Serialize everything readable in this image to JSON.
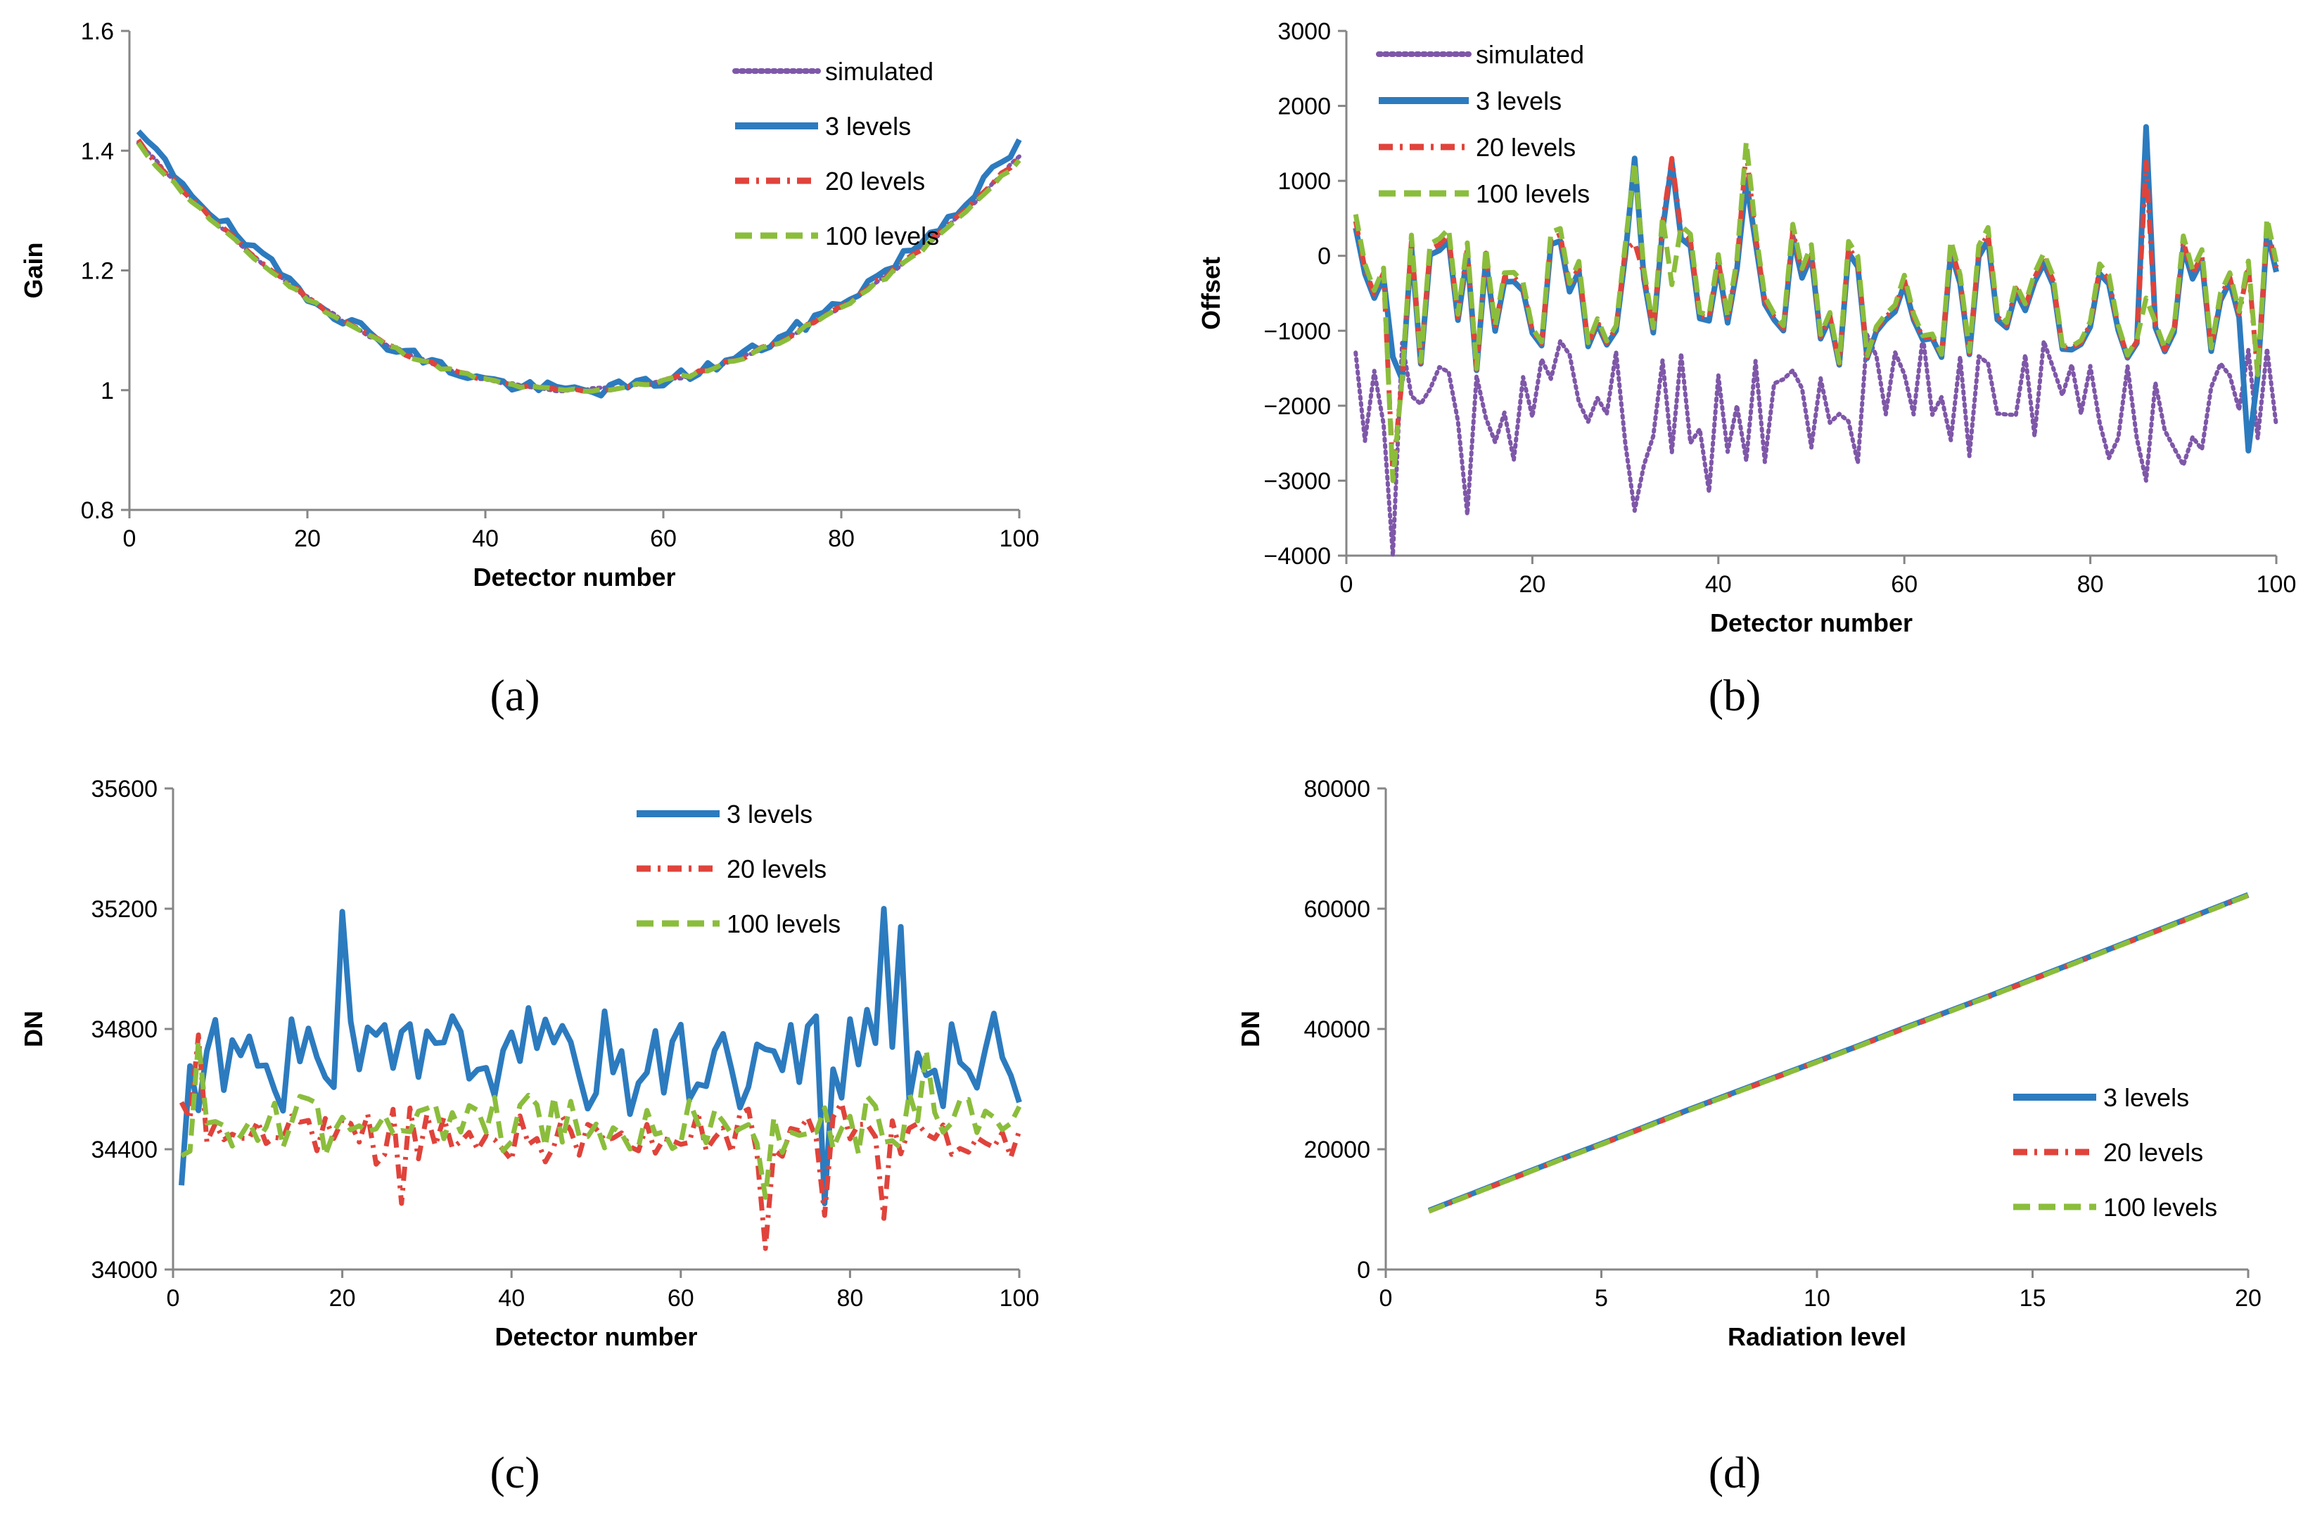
{
  "styles": {
    "simulated": {
      "color": "#7e57a8",
      "dash": "3 6",
      "width": 6,
      "cap": "round"
    },
    "3 levels": {
      "color": "#2c7bbf",
      "dash": "",
      "width": 8,
      "cap": "butt"
    },
    "20 levels": {
      "color": "#e0433b",
      "dash": "20 10 4 10",
      "width": 7,
      "cap": "butt"
    },
    "100 levels": {
      "color": "#8bbd3c",
      "dash": "24 12",
      "width": 7,
      "cap": "butt"
    }
  },
  "chart_data": [
    {
      "id": "a",
      "type": "line",
      "panel_label": "(a)",
      "xlabel": "Detector number",
      "ylabel": "Gain",
      "xlim": [
        0,
        100
      ],
      "ylim": [
        0.8,
        1.6
      ],
      "xticks": [
        0,
        20,
        40,
        60,
        80,
        100
      ],
      "yticks": [
        0.8,
        1,
        1.2,
        1.4,
        1.6
      ],
      "ytick_labels": [
        "0.8",
        "1",
        "1.2",
        "1.4",
        "1.6"
      ],
      "legend_position": "top-right",
      "series": [
        {
          "name": "simulated",
          "generator": "parabola",
          "gen": {
            "min": 1.0,
            "vertex": 50,
            "y1": 1.415,
            "y100": 1.39,
            "noise": 0.003
          }
        },
        {
          "name": "3 levels",
          "generator": "parabola",
          "gen": {
            "min": 1.0,
            "vertex": 50,
            "y1": 1.43,
            "y100": 1.41,
            "noise": 0.012
          }
        },
        {
          "name": "20 levels",
          "generator": "parabola",
          "gen": {
            "min": 1.0,
            "vertex": 50,
            "y1": 1.415,
            "y100": 1.39,
            "noise": 0.004
          }
        },
        {
          "name": "100 levels",
          "generator": "parabola",
          "gen": {
            "min": 1.0,
            "vertex": 50,
            "y1": 1.41,
            "y100": 1.385,
            "noise": 0.004
          }
        }
      ]
    },
    {
      "id": "b",
      "type": "line",
      "panel_label": "(b)",
      "xlabel": "Detector number",
      "ylabel": "Offset",
      "xlim": [
        0,
        100
      ],
      "ylim": [
        -4000,
        3000
      ],
      "xticks": [
        0,
        20,
        40,
        60,
        80,
        100
      ],
      "yticks": [
        -4000,
        -3000,
        -2000,
        -1000,
        0,
        1000,
        2000,
        3000
      ],
      "ytick_labels": [
        "−4000",
        "−3000",
        "−2000",
        "−1000",
        "0",
        "1000",
        "2000",
        "3000"
      ],
      "legend_position": "top-left",
      "series": [
        {
          "name": "simulated",
          "generator": "noisy",
          "gen": {
            "mean": -1900,
            "amp": 1100,
            "seed": 11,
            "spikes": [
              [
                5,
                -4000
              ],
              [
                13,
                -3450
              ],
              [
                31,
                -3400
              ],
              [
                39,
                -3150
              ],
              [
                86,
                -3000
              ]
            ]
          }
        },
        {
          "name": "3 levels",
          "generator": "noisy",
          "gen": {
            "mean": -600,
            "amp": 1200,
            "seed": 23,
            "spikes": [
              [
                31,
                1300
              ],
              [
                35,
                1250
              ],
              [
                43,
                1000
              ],
              [
                86,
                1720
              ],
              [
                97,
                -2600
              ]
            ]
          }
        },
        {
          "name": "20 levels",
          "generator": "noisy",
          "gen": {
            "mean": -550,
            "amp": 1250,
            "seed": 23,
            "spikes": [
              [
                35,
                1300
              ],
              [
                43,
                1400
              ],
              [
                86,
                1250
              ],
              [
                5,
                -2900
              ]
            ]
          }
        },
        {
          "name": "100 levels",
          "generator": "noisy",
          "gen": {
            "mean": -500,
            "amp": 1300,
            "seed": 23,
            "spikes": [
              [
                43,
                1520
              ],
              [
                31,
                1250
              ],
              [
                5,
                -3000
              ]
            ]
          }
        }
      ]
    },
    {
      "id": "c",
      "type": "line",
      "panel_label": "(c)",
      "xlabel": "Detector number",
      "ylabel": "DN",
      "xlim": [
        0,
        100
      ],
      "ylim": [
        34000,
        35600
      ],
      "xticks": [
        0,
        20,
        40,
        60,
        80,
        100
      ],
      "yticks": [
        34000,
        34400,
        34800,
        35200,
        35600
      ],
      "ytick_labels": [
        "34000",
        "34400",
        "34800",
        "35200",
        "35600"
      ],
      "legend_position": "top-center",
      "series": [
        {
          "name": "3 levels",
          "generator": "noisy",
          "gen": {
            "mean": 34700,
            "amp": 200,
            "seed": 31,
            "spikes": [
              [
                1,
                34280
              ],
              [
                20,
                35190
              ],
              [
                77,
                34220
              ],
              [
                84,
                35200
              ],
              [
                86,
                35140
              ]
            ]
          }
        },
        {
          "name": "20 levels",
          "generator": "noisy",
          "gen": {
            "mean": 34450,
            "amp": 110,
            "seed": 47,
            "spikes": [
              [
                3,
                34780
              ],
              [
                27,
                34220
              ],
              [
                70,
                34070
              ],
              [
                77,
                34180
              ],
              [
                84,
                34170
              ]
            ]
          }
        },
        {
          "name": "100 levels",
          "generator": "noisy",
          "gen": {
            "mean": 34480,
            "amp": 120,
            "seed": 53,
            "spikes": [
              [
                89,
                34730
              ],
              [
                3,
                34760
              ],
              [
                70,
                34240
              ]
            ]
          }
        }
      ]
    },
    {
      "id": "d",
      "type": "line",
      "panel_label": "(d)",
      "xlabel": "Radiation level",
      "ylabel": "DN",
      "xlim": [
        0,
        20
      ],
      "ylim": [
        0,
        80000
      ],
      "xticks": [
        0,
        5,
        10,
        15,
        20
      ],
      "yticks": [
        0,
        20000,
        40000,
        60000,
        80000
      ],
      "ytick_labels": [
        "0",
        "20000",
        "40000",
        "60000",
        "80000"
      ],
      "legend_position": "center-right",
      "x": [
        1,
        2,
        3,
        4,
        5,
        6,
        7,
        8,
        9,
        10,
        11,
        12,
        13,
        14,
        15,
        16,
        17,
        18,
        19,
        20
      ],
      "series": [
        {
          "name": "3 levels",
          "values": [
            9800,
            12600,
            15400,
            18200,
            20900,
            23700,
            26500,
            29200,
            31900,
            34600,
            37300,
            40100,
            42800,
            45500,
            48300,
            51100,
            53900,
            56700,
            59500,
            62300
          ]
        },
        {
          "name": "20 levels",
          "values": [
            9700,
            12500,
            15300,
            18100,
            20800,
            23600,
            26400,
            29100,
            31800,
            34500,
            37200,
            40000,
            42700,
            45400,
            48200,
            51000,
            53800,
            56600,
            59400,
            62200
          ]
        },
        {
          "name": "100 levels",
          "values": [
            9700,
            12500,
            15300,
            18100,
            20800,
            23600,
            26400,
            29100,
            31800,
            34500,
            37200,
            40000,
            42700,
            45400,
            48200,
            51000,
            53800,
            56600,
            59400,
            62200
          ]
        }
      ]
    }
  ]
}
